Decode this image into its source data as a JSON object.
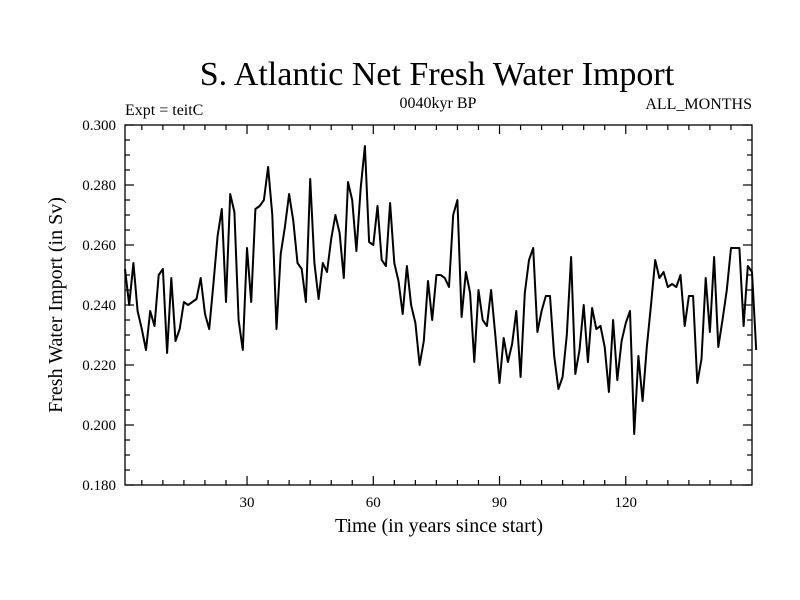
{
  "chart_data": {
    "type": "line",
    "title": "S. Atlantic Net Fresh Water Import",
    "subtitle_left": "Expt = teitC",
    "subtitle_center": "0040kyr BP",
    "subtitle_right": "ALL_MONTHS",
    "xlabel": "Time (in years since start)",
    "ylabel": "Fresh Water Import (in Sv)",
    "xlim": [
      1,
      150
    ],
    "ylim": [
      0.18,
      0.3
    ],
    "x_ticks": [
      30,
      60,
      90,
      120
    ],
    "x_tick_labels": [
      "30",
      "60",
      "90",
      "120"
    ],
    "y_ticks": [
      0.18,
      0.2,
      0.22,
      0.24,
      0.26,
      0.28,
      0.3
    ],
    "y_tick_labels": [
      "0.180",
      "0.200",
      "0.220",
      "0.240",
      "0.260",
      "0.280",
      "0.300"
    ],
    "grid": false,
    "series": [
      {
        "name": "Fresh Water Import",
        "color": "#000000",
        "values": [
          0.252,
          0.24,
          0.254,
          0.238,
          0.232,
          0.225,
          0.238,
          0.233,
          0.25,
          0.252,
          0.224,
          0.249,
          0.228,
          0.232,
          0.241,
          0.24,
          0.241,
          0.242,
          0.249,
          0.237,
          0.232,
          0.247,
          0.263,
          0.272,
          0.241,
          0.277,
          0.271,
          0.235,
          0.225,
          0.259,
          0.241,
          0.272,
          0.273,
          0.275,
          0.286,
          0.27,
          0.232,
          0.257,
          0.266,
          0.277,
          0.268,
          0.254,
          0.252,
          0.241,
          0.282,
          0.254,
          0.242,
          0.254,
          0.251,
          0.262,
          0.27,
          0.264,
          0.249,
          0.281,
          0.275,
          0.258,
          0.279,
          0.293,
          0.261,
          0.26,
          0.273,
          0.255,
          0.253,
          0.274,
          0.254,
          0.248,
          0.237,
          0.253,
          0.24,
          0.234,
          0.22,
          0.228,
          0.248,
          0.235,
          0.25,
          0.25,
          0.249,
          0.246,
          0.27,
          0.275,
          0.236,
          0.251,
          0.244,
          0.221,
          0.245,
          0.235,
          0.233,
          0.245,
          0.23,
          0.214,
          0.229,
          0.221,
          0.227,
          0.238,
          0.216,
          0.244,
          0.255,
          0.259,
          0.231,
          0.238,
          0.243,
          0.243,
          0.223,
          0.212,
          0.216,
          0.23,
          0.256,
          0.217,
          0.225,
          0.24,
          0.221,
          0.239,
          0.232,
          0.233,
          0.226,
          0.211,
          0.235,
          0.215,
          0.228,
          0.234,
          0.238,
          0.197,
          0.223,
          0.208,
          0.226,
          0.24,
          0.255,
          0.249,
          0.251,
          0.246,
          0.247,
          0.246,
          0.25,
          0.233,
          0.243,
          0.243,
          0.214,
          0.222,
          0.249,
          0.231,
          0.256,
          0.226,
          0.235,
          0.245,
          0.259,
          0.259,
          0.259,
          0.233,
          0.253,
          0.251,
          0.225
        ]
      }
    ]
  }
}
